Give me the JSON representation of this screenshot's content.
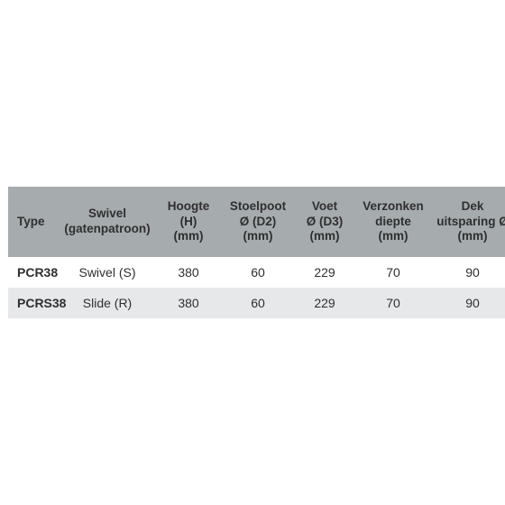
{
  "table": {
    "columns": [
      {
        "l1": "Type",
        "l2": "",
        "l3": ""
      },
      {
        "l1": "Swivel",
        "l2": "(gatenpatroon)",
        "l3": ""
      },
      {
        "l1": "Hoogte",
        "l2": "(H)",
        "l3": "(mm)"
      },
      {
        "l1": "Stoelpoot",
        "l2": "Ø (D2)",
        "l3": "(mm)"
      },
      {
        "l1": "Voet",
        "l2": "Ø (D3)",
        "l3": "(mm)"
      },
      {
        "l1": "Verzonken",
        "l2": "diepte",
        "l3": "(mm)"
      },
      {
        "l1": "Dek",
        "l2": "uitsparing Ø",
        "l3": "(mm)"
      }
    ],
    "rows": [
      [
        "PCR38",
        "Swivel (S)",
        "380",
        "60",
        "229",
        "70",
        "90"
      ],
      [
        "PCRS38",
        "Slide (R)",
        "380",
        "60",
        "229",
        "70",
        "90"
      ]
    ],
    "header_bg": "#a6abae",
    "row_odd_bg": "#ffffff",
    "row_even_bg": "#e6e8ea",
    "text_color": "#2f2f2f",
    "header_fontsize": 13.5,
    "cell_fontsize": 14
  }
}
